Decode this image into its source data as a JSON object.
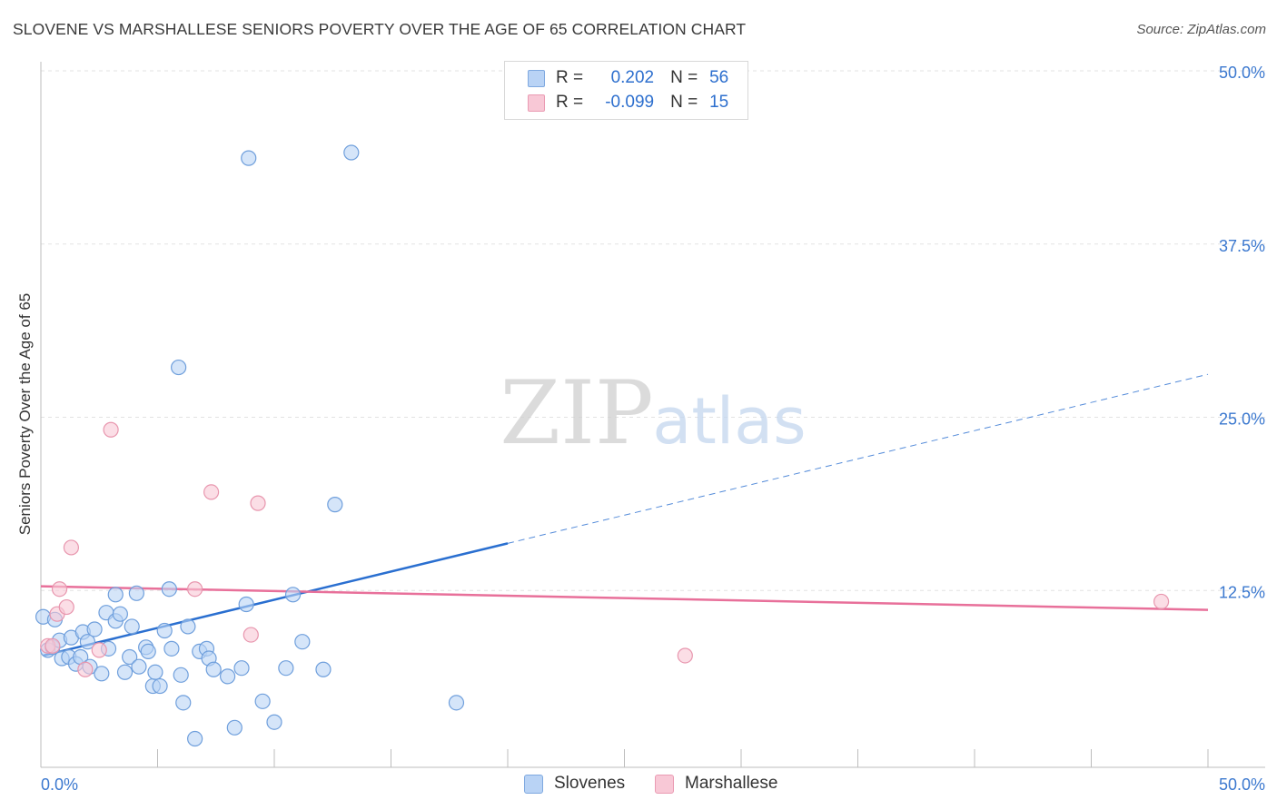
{
  "header": {
    "title": "SLOVENE VS MARSHALLESE SENIORS POVERTY OVER THE AGE OF 65 CORRELATION CHART",
    "source": "Source: ZipAtlas.com"
  },
  "watermark": {
    "zip": "ZIP",
    "atlas": "atlas"
  },
  "legend": {
    "rows": [
      {
        "r_label": "R =",
        "r_value": "0.202",
        "n_label": "N =",
        "n_value": "56",
        "swatch_fill": "#b9d3f5",
        "swatch_stroke": "#7fa9e0"
      },
      {
        "r_label": "R =",
        "r_value": "-0.099",
        "n_label": "N =",
        "n_value": "15",
        "swatch_fill": "#f8c8d6",
        "swatch_stroke": "#ea9bb3"
      }
    ]
  },
  "bottom_legend": {
    "items": [
      {
        "label": "Slovenes",
        "fill": "#b9d3f5",
        "stroke": "#7fa9e0"
      },
      {
        "label": "Marshallese",
        "fill": "#f8c8d6",
        "stroke": "#ea9bb3"
      }
    ]
  },
  "chart_data": {
    "type": "scatter",
    "title": "SLOVENE VS MARSHALLESE SENIORS POVERTY OVER THE AGE OF 65 CORRELATION CHART",
    "xlabel": "",
    "ylabel": "Seniors Poverty Over the Age of 65",
    "xlim": [
      0,
      50
    ],
    "ylim": [
      0,
      50
    ],
    "x_tick_labels": [
      {
        "value": 0,
        "label": "0.0%"
      },
      {
        "value": 50,
        "label": "50.0%"
      }
    ],
    "y_tick_labels": [
      {
        "value": 12.5,
        "label": "12.5%"
      },
      {
        "value": 25,
        "label": "25.0%"
      },
      {
        "value": 37.5,
        "label": "37.5%"
      },
      {
        "value": 50,
        "label": "50.0%"
      }
    ],
    "x_minor_ticks": [
      5,
      10,
      15,
      20,
      25,
      30,
      35,
      40,
      45,
      50
    ],
    "grid": true,
    "colors": {
      "slovenes_fill": "#b9d3f5",
      "slovenes_stroke": "#6f9fdc",
      "slovenes_line": "#2a6fd0",
      "marshallese_fill": "#f8c8d6",
      "marshallese_stroke": "#e896ae",
      "marshallese_line": "#e8709a",
      "tick_label": "#3b78cf",
      "grid": "#e3e3e3"
    },
    "series": [
      {
        "name": "Slovenes",
        "R": 0.202,
        "N": 56,
        "points": [
          [
            0.1,
            10.6
          ],
          [
            0.3,
            8.2
          ],
          [
            0.5,
            8.4
          ],
          [
            0.6,
            10.4
          ],
          [
            0.8,
            8.9
          ],
          [
            0.9,
            7.6
          ],
          [
            1.2,
            7.7
          ],
          [
            1.3,
            9.1
          ],
          [
            1.5,
            7.2
          ],
          [
            1.7,
            7.7
          ],
          [
            1.8,
            9.5
          ],
          [
            2.0,
            8.8
          ],
          [
            2.1,
            7.0
          ],
          [
            2.3,
            9.7
          ],
          [
            2.6,
            6.5
          ],
          [
            2.8,
            10.9
          ],
          [
            2.9,
            8.3
          ],
          [
            3.2,
            12.2
          ],
          [
            3.2,
            10.3
          ],
          [
            3.4,
            10.8
          ],
          [
            3.6,
            6.6
          ],
          [
            3.8,
            7.7
          ],
          [
            3.9,
            9.9
          ],
          [
            4.1,
            12.3
          ],
          [
            4.2,
            7.0
          ],
          [
            4.5,
            8.4
          ],
          [
            4.6,
            8.1
          ],
          [
            4.8,
            5.6
          ],
          [
            4.9,
            6.6
          ],
          [
            5.1,
            5.6
          ],
          [
            5.3,
            9.6
          ],
          [
            5.5,
            12.6
          ],
          [
            5.6,
            8.3
          ],
          [
            5.9,
            28.6
          ],
          [
            6.0,
            6.4
          ],
          [
            6.1,
            4.4
          ],
          [
            6.3,
            9.9
          ],
          [
            6.6,
            1.8
          ],
          [
            6.8,
            8.1
          ],
          [
            7.1,
            8.3
          ],
          [
            7.2,
            7.6
          ],
          [
            7.4,
            6.8
          ],
          [
            8.0,
            6.3
          ],
          [
            8.3,
            2.6
          ],
          [
            8.6,
            6.9
          ],
          [
            8.8,
            11.5
          ],
          [
            8.9,
            43.7
          ],
          [
            9.5,
            4.5
          ],
          [
            10.0,
            3.0
          ],
          [
            10.5,
            6.9
          ],
          [
            10.8,
            12.2
          ],
          [
            11.2,
            8.8
          ],
          [
            12.1,
            6.8
          ],
          [
            12.6,
            18.7
          ],
          [
            13.3,
            44.1
          ],
          [
            17.8,
            4.4
          ]
        ],
        "trend": {
          "x0": 0.1,
          "y0": 7.8,
          "x_solid_end": 20.0,
          "y_solid_end": 15.9,
          "x1": 50.0,
          "y1": 28.1
        }
      },
      {
        "name": "Marshallese",
        "R": -0.099,
        "N": 15,
        "points": [
          [
            0.3,
            8.5
          ],
          [
            0.5,
            8.5
          ],
          [
            0.7,
            10.8
          ],
          [
            0.8,
            12.6
          ],
          [
            1.1,
            11.3
          ],
          [
            1.3,
            15.6
          ],
          [
            1.9,
            6.8
          ],
          [
            2.5,
            8.2
          ],
          [
            3.0,
            24.1
          ],
          [
            6.6,
            12.6
          ],
          [
            7.3,
            19.6
          ],
          [
            9.0,
            9.3
          ],
          [
            9.3,
            18.8
          ],
          [
            27.6,
            7.8
          ],
          [
            48.0,
            11.7
          ]
        ],
        "trend": {
          "x0": 0.0,
          "y0": 12.8,
          "x1": 50.0,
          "y1": 11.1
        }
      }
    ]
  }
}
